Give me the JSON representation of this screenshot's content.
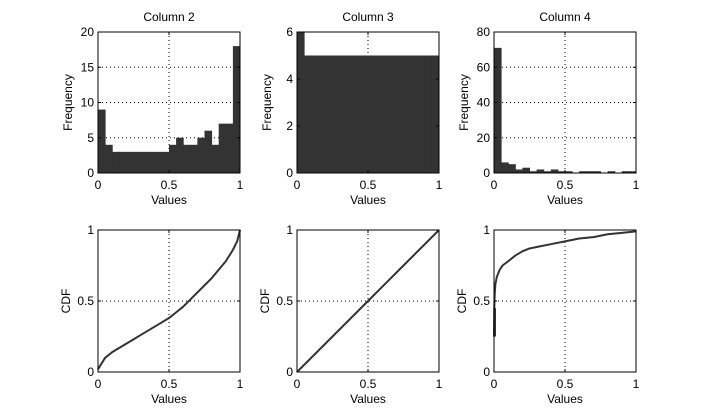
{
  "figure": {
    "background": "#ffffff",
    "bar_color": "#333333",
    "line_color": "#333333"
  },
  "chart_data": [
    {
      "id": "hist-col2",
      "type": "bar",
      "subtype": "histogram",
      "title": "Column 2",
      "xlabel": "Values",
      "ylabel": "Frequency",
      "xlim": [
        0,
        1
      ],
      "ylim": [
        0,
        20
      ],
      "xticks": [
        "0",
        "0.5",
        "1"
      ],
      "yticks": [
        "0",
        "5",
        "10",
        "15",
        "20"
      ],
      "xtick_values": [
        0,
        0.5,
        1
      ],
      "ytick_values": [
        0,
        5,
        10,
        15,
        20
      ],
      "grid": true,
      "bin_edges_start": 0,
      "bin_width": 0.05,
      "values": [
        9,
        4,
        3,
        3,
        3,
        3,
        3,
        3,
        3,
        3,
        4,
        5,
        4,
        4,
        5,
        6,
        4,
        7,
        7,
        18
      ]
    },
    {
      "id": "hist-col3",
      "type": "bar",
      "subtype": "histogram",
      "title": "Column 3",
      "xlabel": "Values",
      "ylabel": "Frequency",
      "xlim": [
        0,
        1
      ],
      "ylim": [
        0,
        6
      ],
      "xticks": [
        "0",
        "0.5",
        "1"
      ],
      "yticks": [
        "0",
        "2",
        "4",
        "6"
      ],
      "xtick_values": [
        0,
        0.5,
        1
      ],
      "ytick_values": [
        0,
        2,
        4,
        6
      ],
      "grid": true,
      "bin_edges_start": 0,
      "bin_width": 0.05,
      "values": [
        6,
        5,
        5,
        5,
        5,
        5,
        5,
        5,
        5,
        5,
        5,
        5,
        5,
        5,
        5,
        5,
        5,
        5,
        5,
        5
      ]
    },
    {
      "id": "hist-col4",
      "type": "bar",
      "subtype": "histogram",
      "title": "Column 4",
      "xlabel": "Values",
      "ylabel": "Frequency",
      "xlim": [
        0,
        1
      ],
      "ylim": [
        0,
        80
      ],
      "xticks": [
        "0",
        "0.5",
        "1"
      ],
      "yticks": [
        "0",
        "20",
        "40",
        "60",
        "80"
      ],
      "xtick_values": [
        0,
        0.5,
        1
      ],
      "ytick_values": [
        0,
        20,
        40,
        60,
        80
      ],
      "grid": true,
      "bin_edges_start": 0,
      "bin_width": 0.05,
      "values": [
        71,
        6,
        5,
        2,
        3,
        1,
        2,
        1,
        2,
        1,
        1,
        0,
        1,
        1,
        1,
        0,
        1,
        0,
        1,
        1
      ]
    },
    {
      "id": "cdf-col2",
      "type": "line",
      "subtype": "step",
      "title": "",
      "xlabel": "Values",
      "ylabel": "CDF",
      "xlim": [
        0,
        1
      ],
      "ylim": [
        0,
        1
      ],
      "xticks": [
        "0",
        "0.5",
        "1"
      ],
      "yticks": [
        "0",
        "0.5",
        "1"
      ],
      "xtick_values": [
        0,
        0.5,
        1
      ],
      "ytick_values": [
        0,
        0.5,
        1
      ],
      "grid": true,
      "x": [
        0,
        0.05,
        0.1,
        0.15,
        0.2,
        0.25,
        0.3,
        0.35,
        0.4,
        0.45,
        0.5,
        0.55,
        0.6,
        0.65,
        0.7,
        0.75,
        0.8,
        0.85,
        0.9,
        0.95,
        0.98,
        1
      ],
      "y": [
        0.02,
        0.1,
        0.14,
        0.17,
        0.2,
        0.23,
        0.26,
        0.29,
        0.32,
        0.35,
        0.38,
        0.42,
        0.46,
        0.51,
        0.56,
        0.61,
        0.66,
        0.72,
        0.78,
        0.86,
        0.92,
        1.0
      ]
    },
    {
      "id": "cdf-col3",
      "type": "line",
      "subtype": "step",
      "title": "",
      "xlabel": "Values",
      "ylabel": "CDF",
      "xlim": [
        0,
        1
      ],
      "ylim": [
        0,
        1
      ],
      "xticks": [
        "0",
        "0.5",
        "1"
      ],
      "yticks": [
        "0",
        "0.5",
        "1"
      ],
      "xtick_values": [
        0,
        0.5,
        1
      ],
      "ytick_values": [
        0,
        0.5,
        1
      ],
      "grid": true,
      "x": [
        0,
        0.25,
        0.5,
        0.75,
        1
      ],
      "y": [
        0,
        0.25,
        0.5,
        0.75,
        1.0
      ]
    },
    {
      "id": "cdf-col4",
      "type": "line",
      "subtype": "step",
      "title": "",
      "xlabel": "Values",
      "ylabel": "CDF",
      "xlim": [
        0,
        1
      ],
      "ylim": [
        0,
        1
      ],
      "xticks": [
        "0",
        "0.5",
        "1"
      ],
      "yticks": [
        "0",
        "0.5",
        "1"
      ],
      "xtick_values": [
        0,
        0.5,
        1
      ],
      "ytick_values": [
        0,
        0.5,
        1
      ],
      "grid": true,
      "x": [
        0,
        0.002,
        0.005,
        0.01,
        0.02,
        0.04,
        0.06,
        0.1,
        0.15,
        0.2,
        0.25,
        0.3,
        0.4,
        0.5,
        0.6,
        0.7,
        0.8,
        0.9,
        1
      ],
      "y": [
        0.25,
        0.45,
        0.55,
        0.62,
        0.67,
        0.72,
        0.75,
        0.78,
        0.82,
        0.85,
        0.87,
        0.88,
        0.9,
        0.92,
        0.94,
        0.95,
        0.97,
        0.98,
        0.99
      ]
    }
  ]
}
